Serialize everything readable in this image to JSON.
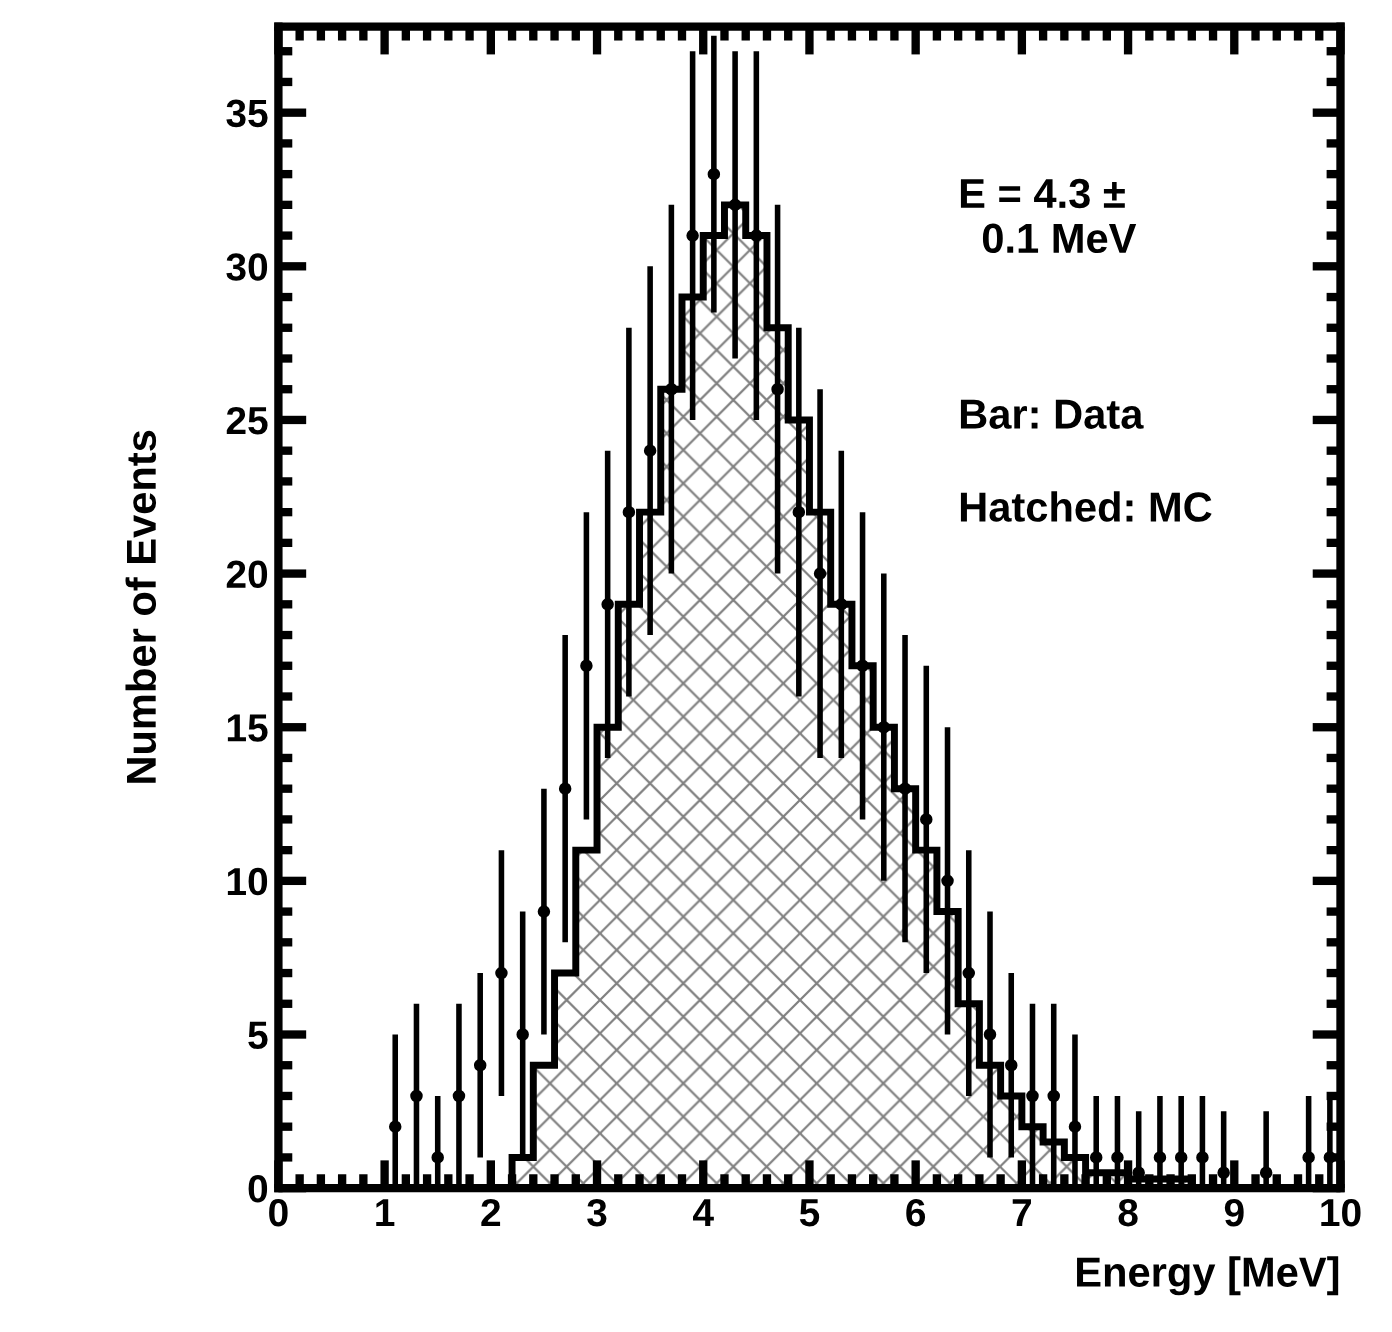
{
  "chart_data": {
    "type": "histogram",
    "xlabel": "Energy [MeV]",
    "ylabel": "Number of Events",
    "bins": [
      0,
      0.2,
      0.4,
      0.6,
      0.8,
      1,
      1.2,
      1.4,
      1.6,
      1.8,
      2,
      2.2,
      2.4,
      2.6,
      2.8,
      3,
      3.2,
      3.4,
      3.6,
      3.8,
      4,
      4.2,
      4.4,
      4.6,
      4.8,
      5,
      5.2,
      5.4,
      5.6,
      5.8,
      6,
      6.2,
      6.4,
      6.6,
      6.8,
      7,
      7.2,
      7.4,
      7.6,
      7.8,
      8,
      8.2,
      8.4,
      8.6,
      8.8,
      9,
      9.2,
      9.4,
      9.6,
      9.8,
      10
    ],
    "series": [
      {
        "color": "#000000",
        "values": [
          0,
          0,
          0,
          0,
          0,
          0,
          0,
          0,
          0,
          0,
          0,
          1,
          4,
          7,
          11,
          15,
          19,
          22,
          26,
          29,
          31,
          32,
          31,
          28,
          25,
          22,
          19,
          17,
          15,
          13,
          11,
          9,
          6,
          4,
          3,
          2,
          1.5,
          1,
          0.5,
          0.5,
          0.3,
          0.3,
          0.3,
          0,
          0,
          0,
          0,
          0,
          0,
          0
        ]
      },
      {
        "type": "scatter",
        "color": "#000000",
        "x": [
          1.1,
          1.3,
          1.5,
          1.7,
          1.9,
          2.1,
          2.3,
          2.5,
          2.7,
          2.9,
          3.1,
          3.3,
          3.5,
          3.7,
          3.9,
          4.1,
          4.3,
          4.5,
          4.7,
          4.9,
          5.1,
          5.3,
          5.5,
          5.7,
          5.9,
          6.1,
          6.3,
          6.5,
          6.7,
          6.9,
          7.1,
          7.3,
          7.5,
          7.7,
          7.9,
          8.1,
          8.3,
          8.5,
          8.7,
          8.9,
          9.3,
          9.7,
          9.9
        ],
        "values": [
          2,
          3,
          1,
          3,
          4,
          7,
          5,
          9,
          13,
          17,
          19,
          22,
          24,
          26,
          31,
          33,
          32,
          31,
          26,
          22,
          20,
          19,
          17,
          15,
          13,
          12,
          10,
          7,
          5,
          4,
          3,
          3,
          2,
          1,
          1,
          0.5,
          1,
          1,
          1,
          0.5,
          0.5,
          1,
          1
        ],
        "marker": "circle",
        "errors": [
          3,
          3,
          2,
          3,
          3,
          4,
          4,
          4,
          5,
          5,
          5,
          6,
          6,
          6,
          6,
          4.5,
          5,
          6,
          6,
          6,
          6,
          5,
          5,
          5,
          5,
          5,
          5,
          4,
          4,
          3,
          3,
          3,
          3,
          2,
          2,
          2,
          2,
          2,
          2,
          2,
          2,
          2,
          2
        ]
      }
    ],
    "xlim": [
      0,
      10
    ],
    "ylim": [
      0,
      37.8
    ],
    "xticks": [
      0,
      1,
      2,
      3,
      4,
      5,
      6,
      7,
      8,
      9,
      10
    ],
    "yticks": [
      0,
      5,
      10,
      15,
      20,
      25,
      30,
      35
    ],
    "annotations": [
      "E = 4.3 ±\n  0.1 MeV",
      "Bar: Data",
      "Hatched: MC"
    ],
    "grid": false,
    "legend": false
  }
}
